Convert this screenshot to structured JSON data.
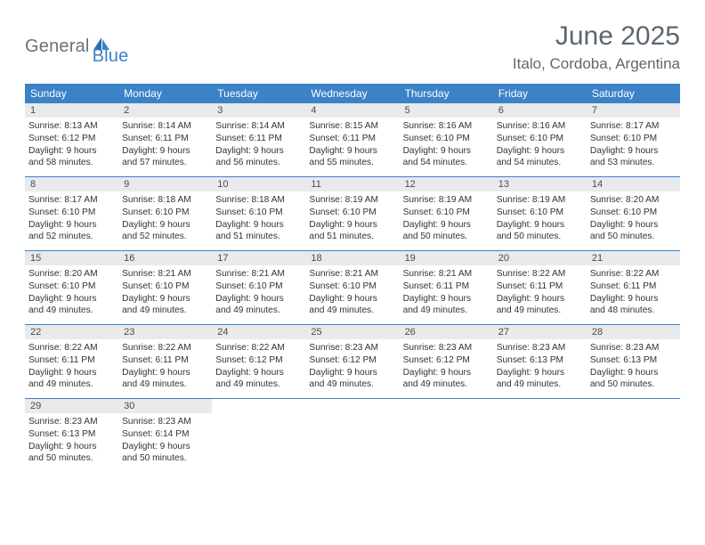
{
  "brand": {
    "part1": "General",
    "part2": "Blue"
  },
  "title": "June 2025",
  "location": "Italo, Cordoba, Argentina",
  "colors": {
    "header_bg": "#3b82c7",
    "day_num_bg": "#e8eaec",
    "title_color": "#5d6670",
    "brand_gray": "#6a7379"
  },
  "weekdays": [
    "Sunday",
    "Monday",
    "Tuesday",
    "Wednesday",
    "Thursday",
    "Friday",
    "Saturday"
  ],
  "weeks": [
    [
      {
        "n": "1",
        "sr": "Sunrise: 8:13 AM",
        "ss": "Sunset: 6:12 PM",
        "d1": "Daylight: 9 hours",
        "d2": "and 58 minutes."
      },
      {
        "n": "2",
        "sr": "Sunrise: 8:14 AM",
        "ss": "Sunset: 6:11 PM",
        "d1": "Daylight: 9 hours",
        "d2": "and 57 minutes."
      },
      {
        "n": "3",
        "sr": "Sunrise: 8:14 AM",
        "ss": "Sunset: 6:11 PM",
        "d1": "Daylight: 9 hours",
        "d2": "and 56 minutes."
      },
      {
        "n": "4",
        "sr": "Sunrise: 8:15 AM",
        "ss": "Sunset: 6:11 PM",
        "d1": "Daylight: 9 hours",
        "d2": "and 55 minutes."
      },
      {
        "n": "5",
        "sr": "Sunrise: 8:16 AM",
        "ss": "Sunset: 6:10 PM",
        "d1": "Daylight: 9 hours",
        "d2": "and 54 minutes."
      },
      {
        "n": "6",
        "sr": "Sunrise: 8:16 AM",
        "ss": "Sunset: 6:10 PM",
        "d1": "Daylight: 9 hours",
        "d2": "and 54 minutes."
      },
      {
        "n": "7",
        "sr": "Sunrise: 8:17 AM",
        "ss": "Sunset: 6:10 PM",
        "d1": "Daylight: 9 hours",
        "d2": "and 53 minutes."
      }
    ],
    [
      {
        "n": "8",
        "sr": "Sunrise: 8:17 AM",
        "ss": "Sunset: 6:10 PM",
        "d1": "Daylight: 9 hours",
        "d2": "and 52 minutes."
      },
      {
        "n": "9",
        "sr": "Sunrise: 8:18 AM",
        "ss": "Sunset: 6:10 PM",
        "d1": "Daylight: 9 hours",
        "d2": "and 52 minutes."
      },
      {
        "n": "10",
        "sr": "Sunrise: 8:18 AM",
        "ss": "Sunset: 6:10 PM",
        "d1": "Daylight: 9 hours",
        "d2": "and 51 minutes."
      },
      {
        "n": "11",
        "sr": "Sunrise: 8:19 AM",
        "ss": "Sunset: 6:10 PM",
        "d1": "Daylight: 9 hours",
        "d2": "and 51 minutes."
      },
      {
        "n": "12",
        "sr": "Sunrise: 8:19 AM",
        "ss": "Sunset: 6:10 PM",
        "d1": "Daylight: 9 hours",
        "d2": "and 50 minutes."
      },
      {
        "n": "13",
        "sr": "Sunrise: 8:19 AM",
        "ss": "Sunset: 6:10 PM",
        "d1": "Daylight: 9 hours",
        "d2": "and 50 minutes."
      },
      {
        "n": "14",
        "sr": "Sunrise: 8:20 AM",
        "ss": "Sunset: 6:10 PM",
        "d1": "Daylight: 9 hours",
        "d2": "and 50 minutes."
      }
    ],
    [
      {
        "n": "15",
        "sr": "Sunrise: 8:20 AM",
        "ss": "Sunset: 6:10 PM",
        "d1": "Daylight: 9 hours",
        "d2": "and 49 minutes."
      },
      {
        "n": "16",
        "sr": "Sunrise: 8:21 AM",
        "ss": "Sunset: 6:10 PM",
        "d1": "Daylight: 9 hours",
        "d2": "and 49 minutes."
      },
      {
        "n": "17",
        "sr": "Sunrise: 8:21 AM",
        "ss": "Sunset: 6:10 PM",
        "d1": "Daylight: 9 hours",
        "d2": "and 49 minutes."
      },
      {
        "n": "18",
        "sr": "Sunrise: 8:21 AM",
        "ss": "Sunset: 6:10 PM",
        "d1": "Daylight: 9 hours",
        "d2": "and 49 minutes."
      },
      {
        "n": "19",
        "sr": "Sunrise: 8:21 AM",
        "ss": "Sunset: 6:11 PM",
        "d1": "Daylight: 9 hours",
        "d2": "and 49 minutes."
      },
      {
        "n": "20",
        "sr": "Sunrise: 8:22 AM",
        "ss": "Sunset: 6:11 PM",
        "d1": "Daylight: 9 hours",
        "d2": "and 49 minutes."
      },
      {
        "n": "21",
        "sr": "Sunrise: 8:22 AM",
        "ss": "Sunset: 6:11 PM",
        "d1": "Daylight: 9 hours",
        "d2": "and 48 minutes."
      }
    ],
    [
      {
        "n": "22",
        "sr": "Sunrise: 8:22 AM",
        "ss": "Sunset: 6:11 PM",
        "d1": "Daylight: 9 hours",
        "d2": "and 49 minutes."
      },
      {
        "n": "23",
        "sr": "Sunrise: 8:22 AM",
        "ss": "Sunset: 6:11 PM",
        "d1": "Daylight: 9 hours",
        "d2": "and 49 minutes."
      },
      {
        "n": "24",
        "sr": "Sunrise: 8:22 AM",
        "ss": "Sunset: 6:12 PM",
        "d1": "Daylight: 9 hours",
        "d2": "and 49 minutes."
      },
      {
        "n": "25",
        "sr": "Sunrise: 8:23 AM",
        "ss": "Sunset: 6:12 PM",
        "d1": "Daylight: 9 hours",
        "d2": "and 49 minutes."
      },
      {
        "n": "26",
        "sr": "Sunrise: 8:23 AM",
        "ss": "Sunset: 6:12 PM",
        "d1": "Daylight: 9 hours",
        "d2": "and 49 minutes."
      },
      {
        "n": "27",
        "sr": "Sunrise: 8:23 AM",
        "ss": "Sunset: 6:13 PM",
        "d1": "Daylight: 9 hours",
        "d2": "and 49 minutes."
      },
      {
        "n": "28",
        "sr": "Sunrise: 8:23 AM",
        "ss": "Sunset: 6:13 PM",
        "d1": "Daylight: 9 hours",
        "d2": "and 50 minutes."
      }
    ],
    [
      {
        "n": "29",
        "sr": "Sunrise: 8:23 AM",
        "ss": "Sunset: 6:13 PM",
        "d1": "Daylight: 9 hours",
        "d2": "and 50 minutes."
      },
      {
        "n": "30",
        "sr": "Sunrise: 8:23 AM",
        "ss": "Sunset: 6:14 PM",
        "d1": "Daylight: 9 hours",
        "d2": "and 50 minutes."
      },
      null,
      null,
      null,
      null,
      null
    ]
  ]
}
